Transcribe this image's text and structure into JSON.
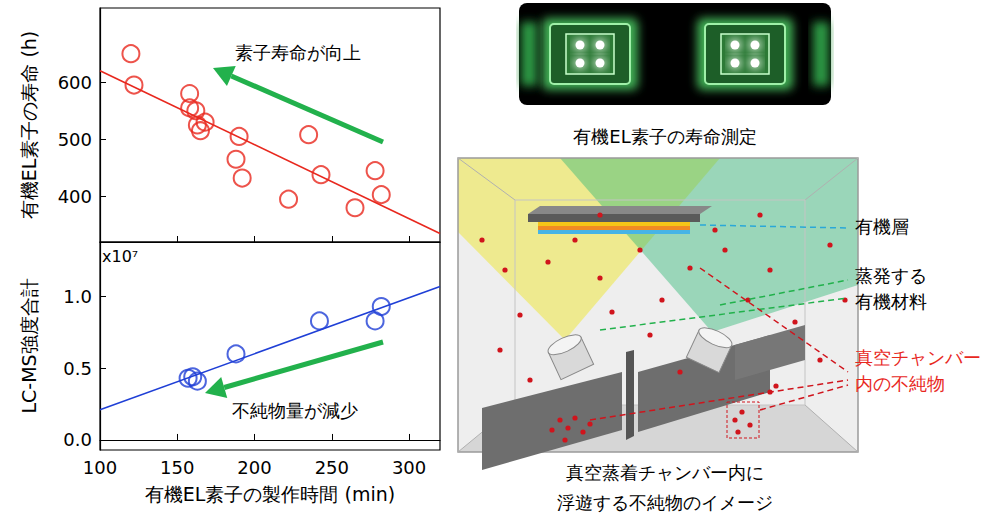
{
  "chart_data": [
    {
      "type": "scatter",
      "y_label": "有機EL素子の寿命 (h)",
      "xlim": [
        100,
        320
      ],
      "xticks": [
        100,
        150,
        200,
        250,
        300
      ],
      "ylim": [
        320,
        730
      ],
      "yticks": [
        400,
        500,
        600
      ],
      "tick_labels": "y",
      "grid": false,
      "series": [
        {
          "type": "scatter",
          "color": "#e8281e",
          "marker": "circle-open",
          "x": [
            120,
            122,
            158,
            158,
            162,
            165,
            163,
            168,
            190,
            188,
            192,
            222,
            235,
            243,
            265,
            278,
            282
          ],
          "values": [
            650,
            595,
            580,
            555,
            550,
            515,
            525,
            530,
            505,
            465,
            432,
            395,
            508,
            438,
            380,
            445,
            403
          ]
        },
        {
          "type": "line",
          "color": "#e8281e",
          "line_style": "solid",
          "x": [
            100,
            320
          ],
          "values": [
            620,
            335
          ]
        }
      ],
      "annotations": [
        {
          "text": "素子寿命が向上",
          "color": "#22b14c"
        }
      ]
    },
    {
      "type": "scatter",
      "x_label": "有機EL素子の製作時間 (min)",
      "y_label": "LC-MS強度合計",
      "y_scale_label": "x10⁷",
      "xlim": [
        100,
        320
      ],
      "xticks": [
        100,
        150,
        200,
        250,
        300
      ],
      "ylim": [
        -0.07,
        1.38
      ],
      "yticks": [
        {
          "value": 0,
          "label": "0.0"
        },
        {
          "value": 0.5,
          "label": "0.5"
        },
        {
          "value": 1,
          "label": "1.0"
        }
      ],
      "grid": false,
      "series": [
        {
          "type": "scatter",
          "color": "#1f3fd6",
          "marker": "circle-open",
          "x": [
            157,
            160,
            163,
            188,
            242,
            278,
            282
          ],
          "values": [
            0.43,
            0.44,
            0.41,
            0.6,
            0.83,
            0.83,
            0.93
          ]
        },
        {
          "type": "line",
          "color": "#1f3fd6",
          "line_style": "solid",
          "x": [
            100,
            320
          ],
          "values": [
            0.21,
            1.07
          ]
        }
      ],
      "annotations": [
        {
          "text": "不純物量が減少",
          "color": "#22b14c"
        }
      ]
    }
  ],
  "diagram": {
    "photo_caption": "有機EL素子の寿命測定",
    "labels": [
      {
        "lines": [
          "有機層"
        ],
        "color": "#000000"
      },
      {
        "lines": [
          "蒸発する",
          "有機材料"
        ],
        "color": "#000000"
      },
      {
        "lines": [
          "真空チャンバー",
          "内の不純物"
        ],
        "color": "#e8281e"
      }
    ],
    "caption": [
      "真空蒸着チャンバー内に",
      "浮遊する不純物のイメージ"
    ]
  }
}
